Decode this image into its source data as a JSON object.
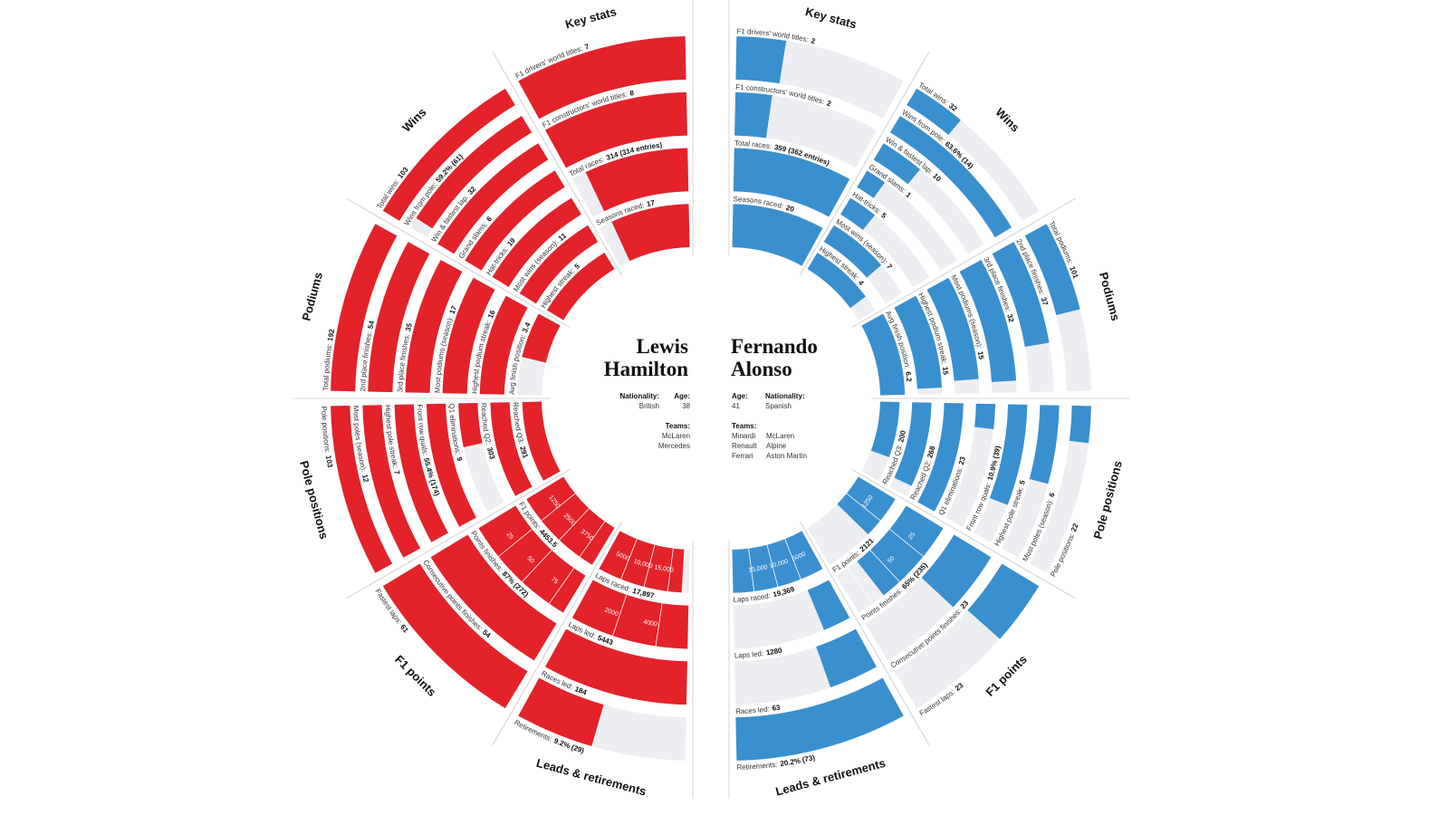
{
  "chart_data": {
    "type": "radial",
    "drivers": [
      {
        "first_name": "Lewis",
        "last_name": "Hamilton",
        "color": "#e3222a",
        "nationality_label": "Nationality:",
        "nationality": "British",
        "age_label": "Age:",
        "age": 38,
        "teams_label": "Teams:",
        "teams": [
          "McLaren",
          "Mercedes"
        ],
        "sections": [
          {
            "title": "Key stats",
            "stats": [
              {
                "label": "F1 drivers' world titles:",
                "value": 7
              },
              {
                "label": "F1 constructors' world titles:",
                "value": 8
              },
              {
                "label": "Total races:",
                "value": 314,
                "value_label": "314 (314 entries)"
              },
              {
                "label": "Seasons raced:",
                "value": 17
              }
            ]
          },
          {
            "title": "Wins",
            "stats": [
              {
                "label": "Total wins:",
                "value": 103
              },
              {
                "label": "Wins from pole:",
                "value": 59.2,
                "value_label": "59.2% (61)"
              },
              {
                "label": "Win & fastest lap:",
                "value": 32
              },
              {
                "label": "Grand slams:",
                "value": 6
              },
              {
                "label": "Hat-tricks:",
                "value": 19
              },
              {
                "label": "Most wins (season):",
                "value": 11
              },
              {
                "label": "Highest streak:",
                "value": 5
              }
            ]
          },
          {
            "title": "Podiums",
            "stats": [
              {
                "label": "Total podiums:",
                "value": 192
              },
              {
                "label": "2nd place finishes:",
                "value": 54
              },
              {
                "label": "3rd place finishes:",
                "value": 35
              },
              {
                "label": "Most podiums (season):",
                "value": 17
              },
              {
                "label": "Highest podium streak:",
                "value": 16
              },
              {
                "label": "Avg finish position:",
                "value": 3.4
              }
            ]
          },
          {
            "title": "Pole positions",
            "stats": [
              {
                "label": "Pole positions:",
                "value": 103
              },
              {
                "label": "Most poles (season):",
                "value": 12
              },
              {
                "label": "Highest pole streak:",
                "value": 7
              },
              {
                "label": "Front row quals:",
                "value": 55.4,
                "value_label": "55.4% (174)"
              },
              {
                "label": "Q1 eliminations:",
                "value": 9
              },
              {
                "label": "Reached Q2:",
                "value": 303
              },
              {
                "label": "Reached Q3:",
                "value": 291
              }
            ]
          },
          {
            "title": "F1 points",
            "stats": [
              {
                "label": "Fastest laps:",
                "value": 61
              },
              {
                "label": "Consecutive points finishes:",
                "value": 54
              },
              {
                "label": "Points finishes:",
                "value": 87,
                "value_label": "87% (272)",
                "ticks": [
                  75,
                  50,
                  25
                ]
              },
              {
                "label": "F1 points:",
                "value": 4453.5,
                "ticks": [
                  3750,
                  2500,
                  1250
                ]
              }
            ]
          },
          {
            "title": "Leads & retirements",
            "stats": [
              {
                "label": "Retirements:",
                "value": 9.2,
                "value_label": "9.2% (29)"
              },
              {
                "label": "Races led:",
                "value": 184
              },
              {
                "label": "Laps led:",
                "value": 5443,
                "ticks": [
                  4000,
                  2000
                ]
              },
              {
                "label": "Laps raced:",
                "value": 17897,
                "value_label": "17,897",
                "ticks": [
                  {
                    "value": 15000,
                    "label": "15,000"
                  },
                  {
                    "value": 10000,
                    "label": "10,000"
                  },
                  5000
                ]
              }
            ]
          }
        ]
      },
      {
        "first_name": "Fernando",
        "last_name": "Alonso",
        "color": "#3a8fcf",
        "nationality_label": "Nationality:",
        "nationality": "Spanish",
        "age_label": "Age:",
        "age": 41,
        "teams_label": "Teams:",
        "teams": [
          "Minardi",
          "Renault",
          "Ferrari",
          "McLaren",
          "Alpine",
          "Aston Martin"
        ],
        "sections": [
          {
            "title": "Key stats",
            "stats": [
              {
                "label": "F1 drivers' world titles:",
                "value": 2
              },
              {
                "label": "F1 constructors' world titles:",
                "value": 2
              },
              {
                "label": "Total races:",
                "value": 359,
                "value_label": "359 (362 entries)"
              },
              {
                "label": "Seasons raced:",
                "value": 20
              }
            ]
          },
          {
            "title": "Wins",
            "stats": [
              {
                "label": "Total wins:",
                "value": 32
              },
              {
                "label": "Wins from pole:",
                "value": 63.6,
                "value_label": "63.6% (14)"
              },
              {
                "label": "Win & fastest lap:",
                "value": 10
              },
              {
                "label": "Grand slams:",
                "value": 1
              },
              {
                "label": "Hat-tricks:",
                "value": 5
              },
              {
                "label": "Most wins (season):",
                "value": 7
              },
              {
                "label": "Highest streak:",
                "value": 4
              }
            ]
          },
          {
            "title": "Podiums",
            "stats": [
              {
                "label": "Total podiums:",
                "value": 101
              },
              {
                "label": "2nd place finishes:",
                "value": 37
              },
              {
                "label": "3rd place finishes:",
                "value": 32
              },
              {
                "label": "Most podiums (season):",
                "value": 15
              },
              {
                "label": "Highest podium streak:",
                "value": 15
              },
              {
                "label": "Avg finish position:",
                "value": 6.2
              }
            ]
          },
          {
            "title": "Pole positions",
            "stats": [
              {
                "label": "Pole positions:",
                "value": 22
              },
              {
                "label": "Most poles (season):",
                "value": 6
              },
              {
                "label": "Highest pole streak:",
                "value": 5
              },
              {
                "label": "Front row quals:",
                "value": 10.9,
                "value_label": "10.9% (39)"
              },
              {
                "label": "Q1 eliminations:",
                "value": 23
              },
              {
                "label": "Reached Q2:",
                "value": 268
              },
              {
                "label": "Reached Q3:",
                "value": 200
              }
            ]
          },
          {
            "title": "F1 points",
            "stats": [
              {
                "label": "Fastest laps:",
                "value": 23
              },
              {
                "label": "Consecutive points finishes:",
                "value": 23
              },
              {
                "label": "Points finishes:",
                "value": 65,
                "value_label": "65% (235)",
                "ticks": [
                  75,
                  50,
                  25
                ]
              },
              {
                "label": "F1 points:",
                "value": 2121,
                "ticks": [
                  1250
                ]
              }
            ]
          },
          {
            "title": "Leads & retirements",
            "stats": [
              {
                "label": "Retirements:",
                "value": 20.2,
                "value_label": "20.2% (73)"
              },
              {
                "label": "Races led:",
                "value": 63
              },
              {
                "label": "Laps led:",
                "value": 1280
              },
              {
                "label": "Laps raced:",
                "value": 19369,
                "value_label": "19,369",
                "ticks": [
                  {
                    "value": 15000,
                    "label": "15,000"
                  },
                  {
                    "value": 10000,
                    "label": "10,000"
                  },
                  5000
                ]
              }
            ]
          }
        ]
      }
    ]
  }
}
